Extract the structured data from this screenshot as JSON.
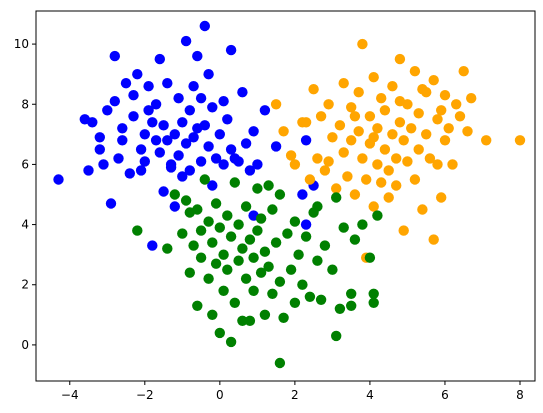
{
  "chart_data": {
    "type": "scatter",
    "title": "",
    "xlabel": "",
    "ylabel": "",
    "xlim": [
      -4.9,
      8.4
    ],
    "ylim": [
      -1.2,
      11.1
    ],
    "xticks": [
      -4,
      -2,
      0,
      2,
      4,
      6,
      8
    ],
    "yticks": [
      0,
      2,
      4,
      6,
      8,
      10
    ],
    "xtick_labels": [
      "−4",
      "−2",
      "0",
      "2",
      "4",
      "6",
      "8"
    ],
    "ytick_labels": [
      "0",
      "2",
      "4",
      "6",
      "8",
      "10"
    ],
    "grid": false,
    "legend": "none",
    "series": [
      {
        "color": "#0000ff",
        "points": [
          [
            -4.3,
            5.5
          ],
          [
            -3.6,
            7.5
          ],
          [
            -3.5,
            5.8
          ],
          [
            -3.4,
            7.4
          ],
          [
            -3.2,
            6.9
          ],
          [
            -3.2,
            6.5
          ],
          [
            -3.1,
            6.0
          ],
          [
            -3.0,
            7.8
          ],
          [
            -2.9,
            4.7
          ],
          [
            -2.8,
            9.6
          ],
          [
            -2.8,
            8.1
          ],
          [
            -2.7,
            6.2
          ],
          [
            -2.6,
            7.2
          ],
          [
            -2.6,
            6.8
          ],
          [
            -2.5,
            8.7
          ],
          [
            -2.4,
            5.7
          ],
          [
            -2.3,
            7.6
          ],
          [
            -2.3,
            8.3
          ],
          [
            -2.2,
            9.0
          ],
          [
            -2.1,
            6.5
          ],
          [
            -2.0,
            7.0
          ],
          [
            -2.0,
            6.1
          ],
          [
            -1.9,
            7.8
          ],
          [
            -1.9,
            8.6
          ],
          [
            -1.8,
            7.4
          ],
          [
            -1.8,
            3.3
          ],
          [
            -1.7,
            6.8
          ],
          [
            -1.7,
            8.0
          ],
          [
            -1.6,
            6.4
          ],
          [
            -1.6,
            9.5
          ],
          [
            -1.5,
            7.3
          ],
          [
            -1.5,
            5.1
          ],
          [
            -1.4,
            6.8
          ],
          [
            -1.4,
            8.7
          ],
          [
            -1.3,
            5.9
          ],
          [
            -1.3,
            6.0
          ],
          [
            -1.2,
            7.0
          ],
          [
            -1.2,
            4.6
          ],
          [
            -1.1,
            6.3
          ],
          [
            -1.1,
            8.2
          ],
          [
            -1.0,
            7.4
          ],
          [
            -1.0,
            5.6
          ],
          [
            -0.9,
            10.1
          ],
          [
            -0.9,
            6.7
          ],
          [
            -0.8,
            7.8
          ],
          [
            -0.8,
            5.8
          ],
          [
            -0.7,
            8.6
          ],
          [
            -0.7,
            6.9
          ],
          [
            -0.6,
            7.2
          ],
          [
            -0.6,
            9.6
          ],
          [
            -0.5,
            6.1
          ],
          [
            -0.5,
            8.2
          ],
          [
            -0.4,
            10.6
          ],
          [
            -0.4,
            7.3
          ],
          [
            -0.3,
            6.6
          ],
          [
            -0.3,
            9.0
          ],
          [
            -0.2,
            5.3
          ],
          [
            -0.2,
            7.9
          ],
          [
            -0.1,
            6.2
          ],
          [
            0.0,
            7.0
          ],
          [
            0.1,
            8.1
          ],
          [
            0.1,
            6.0
          ],
          [
            0.2,
            7.5
          ],
          [
            0.3,
            9.8
          ],
          [
            0.3,
            6.5
          ],
          [
            0.4,
            6.2
          ],
          [
            0.5,
            6.1
          ],
          [
            0.6,
            8.4
          ],
          [
            0.7,
            6.7
          ],
          [
            0.8,
            5.8
          ],
          [
            0.9,
            7.1
          ],
          [
            1.0,
            6.0
          ],
          [
            1.2,
            7.8
          ],
          [
            1.5,
            6.6
          ],
          [
            2.2,
            5.0
          ],
          [
            2.3,
            6.8
          ],
          [
            2.5,
            5.3
          ],
          [
            0.9,
            4.3
          ],
          [
            2.3,
            4.0
          ],
          [
            -2.1,
            5.8
          ]
        ]
      },
      {
        "color": "#ffa500",
        "points": [
          [
            1.5,
            8.0
          ],
          [
            1.7,
            7.1
          ],
          [
            1.9,
            6.3
          ],
          [
            2.0,
            6.0
          ],
          [
            2.2,
            7.4
          ],
          [
            2.4,
            5.5
          ],
          [
            2.5,
            8.5
          ],
          [
            2.6,
            6.2
          ],
          [
            2.7,
            7.6
          ],
          [
            2.8,
            5.8
          ],
          [
            2.9,
            8.0
          ],
          [
            3.0,
            6.9
          ],
          [
            3.1,
            5.2
          ],
          [
            3.2,
            7.3
          ],
          [
            3.3,
            8.7
          ],
          [
            3.3,
            6.4
          ],
          [
            3.4,
            5.6
          ],
          [
            3.5,
            7.9
          ],
          [
            3.5,
            6.8
          ],
          [
            3.6,
            5.0
          ],
          [
            3.7,
            8.4
          ],
          [
            3.7,
            7.1
          ],
          [
            3.8,
            10.0
          ],
          [
            3.8,
            6.2
          ],
          [
            3.9,
            5.5
          ],
          [
            4.0,
            7.6
          ],
          [
            4.0,
            6.7
          ],
          [
            4.1,
            8.9
          ],
          [
            4.1,
            4.6
          ],
          [
            4.2,
            7.2
          ],
          [
            4.2,
            6.0
          ],
          [
            4.3,
            8.2
          ],
          [
            4.3,
            5.4
          ],
          [
            4.4,
            7.8
          ],
          [
            4.4,
            6.5
          ],
          [
            4.5,
            4.9
          ],
          [
            4.6,
            8.6
          ],
          [
            4.6,
            7.0
          ],
          [
            4.7,
            6.2
          ],
          [
            4.7,
            5.3
          ],
          [
            4.8,
            9.5
          ],
          [
            4.8,
            7.4
          ],
          [
            4.9,
            6.8
          ],
          [
            4.9,
            3.8
          ],
          [
            5.0,
            8.0
          ],
          [
            5.0,
            6.1
          ],
          [
            5.1,
            7.2
          ],
          [
            5.2,
            5.5
          ],
          [
            5.2,
            9.1
          ],
          [
            5.3,
            7.7
          ],
          [
            5.3,
            6.5
          ],
          [
            5.4,
            4.5
          ],
          [
            5.5,
            8.4
          ],
          [
            5.5,
            7.0
          ],
          [
            5.6,
            6.2
          ],
          [
            5.7,
            8.8
          ],
          [
            5.7,
            3.5
          ],
          [
            5.8,
            7.5
          ],
          [
            5.8,
            6.0
          ],
          [
            5.9,
            4.9
          ],
          [
            6.0,
            8.3
          ],
          [
            6.0,
            6.8
          ],
          [
            6.1,
            7.2
          ],
          [
            6.2,
            6.0
          ],
          [
            6.3,
            8.0
          ],
          [
            6.4,
            7.6
          ],
          [
            6.5,
            9.1
          ],
          [
            6.6,
            7.1
          ],
          [
            6.7,
            8.2
          ],
          [
            7.1,
            6.8
          ],
          [
            8.0,
            6.8
          ],
          [
            3.9,
            2.9
          ],
          [
            4.1,
            6.9
          ],
          [
            4.8,
            8.1
          ],
          [
            3.6,
            7.6
          ],
          [
            5.4,
            8.5
          ],
          [
            2.9,
            6.1
          ],
          [
            4.5,
            5.8
          ],
          [
            5.9,
            7.8
          ],
          [
            2.3,
            7.4
          ]
        ]
      },
      {
        "color": "#008000",
        "points": [
          [
            -1.4,
            3.2
          ],
          [
            -1.2,
            5.0
          ],
          [
            -1.0,
            3.7
          ],
          [
            -0.9,
            4.8
          ],
          [
            -0.8,
            2.4
          ],
          [
            -0.7,
            3.3
          ],
          [
            -0.6,
            1.3
          ],
          [
            -0.6,
            4.5
          ],
          [
            -0.5,
            2.9
          ],
          [
            -0.5,
            3.8
          ],
          [
            -0.4,
            5.5
          ],
          [
            -0.3,
            2.2
          ],
          [
            -0.3,
            4.1
          ],
          [
            -0.2,
            1.0
          ],
          [
            -0.2,
            3.4
          ],
          [
            -0.1,
            2.7
          ],
          [
            -0.1,
            4.7
          ],
          [
            0.0,
            0.4
          ],
          [
            0.0,
            3.9
          ],
          [
            0.1,
            1.8
          ],
          [
            0.1,
            3.0
          ],
          [
            0.2,
            4.3
          ],
          [
            0.2,
            2.5
          ],
          [
            0.3,
            0.1
          ],
          [
            0.3,
            3.6
          ],
          [
            0.4,
            5.4
          ],
          [
            0.4,
            1.4
          ],
          [
            0.5,
            2.8
          ],
          [
            0.5,
            4.0
          ],
          [
            0.6,
            3.2
          ],
          [
            0.6,
            0.8
          ],
          [
            0.7,
            2.2
          ],
          [
            0.7,
            4.6
          ],
          [
            0.8,
            3.5
          ],
          [
            0.9,
            1.8
          ],
          [
            0.9,
            2.9
          ],
          [
            1.0,
            5.2
          ],
          [
            1.0,
            3.8
          ],
          [
            1.1,
            2.4
          ],
          [
            1.1,
            4.2
          ],
          [
            1.2,
            1.0
          ],
          [
            1.2,
            3.1
          ],
          [
            1.3,
            2.6
          ],
          [
            1.4,
            4.5
          ],
          [
            1.4,
            1.7
          ],
          [
            1.5,
            3.4
          ],
          [
            1.6,
            2.1
          ],
          [
            1.6,
            5.0
          ],
          [
            1.7,
            0.9
          ],
          [
            1.8,
            3.7
          ],
          [
            1.9,
            2.5
          ],
          [
            2.0,
            4.1
          ],
          [
            2.0,
            1.4
          ],
          [
            2.1,
            3.0
          ],
          [
            2.2,
            2.0
          ],
          [
            2.3,
            3.6
          ],
          [
            2.4,
            1.6
          ],
          [
            2.5,
            4.4
          ],
          [
            2.6,
            2.8
          ],
          [
            2.7,
            1.5
          ],
          [
            2.8,
            3.3
          ],
          [
            3.0,
            2.5
          ],
          [
            3.1,
            4.9
          ],
          [
            3.2,
            1.2
          ],
          [
            3.3,
            3.9
          ],
          [
            3.5,
            1.7
          ],
          [
            3.6,
            3.5
          ],
          [
            3.8,
            4.0
          ],
          [
            4.0,
            2.9
          ],
          [
            4.1,
            1.4
          ],
          [
            4.2,
            4.3
          ],
          [
            1.6,
            -0.6
          ],
          [
            3.1,
            0.3
          ],
          [
            -2.2,
            3.8
          ],
          [
            3.5,
            1.3
          ],
          [
            4.1,
            1.7
          ],
          [
            -0.8,
            4.4
          ],
          [
            1.3,
            5.3
          ],
          [
            0.8,
            0.8
          ],
          [
            2.6,
            4.6
          ]
        ]
      }
    ]
  }
}
